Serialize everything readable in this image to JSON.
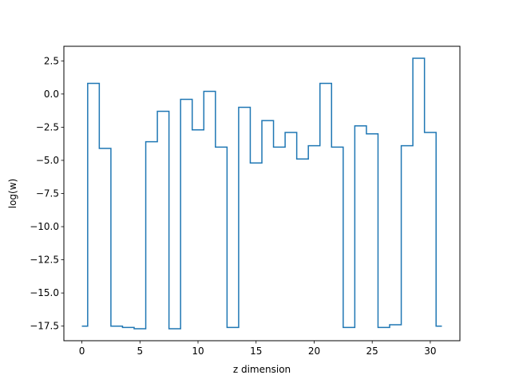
{
  "chart_data": {
    "type": "line",
    "drawstyle": "steps-mid",
    "title": "",
    "xlabel": "z dimension",
    "ylabel": "log(w)",
    "xlim": [
      -1.55,
      32.55
    ],
    "ylim": [
      -18.6,
      3.6
    ],
    "xticks": [
      0,
      5,
      10,
      15,
      20,
      25,
      30
    ],
    "xtick_labels": [
      "0",
      "5",
      "10",
      "15",
      "20",
      "25",
      "30"
    ],
    "yticks": [
      2.5,
      0.0,
      -2.5,
      -5.0,
      -7.5,
      -10.0,
      -12.5,
      -15.0,
      -17.5
    ],
    "ytick_labels": [
      "2.5",
      "0.0",
      "−2.5",
      "−5.0",
      "−7.5",
      "−10.0",
      "−12.5",
      "−15.0",
      "−17.5"
    ],
    "grid": false,
    "legend": "none",
    "color": "#1f77b4",
    "x": [
      0,
      1,
      2,
      3,
      4,
      5,
      6,
      7,
      8,
      9,
      10,
      11,
      12,
      13,
      14,
      15,
      16,
      17,
      18,
      19,
      20,
      21,
      22,
      23,
      24,
      25,
      26,
      27,
      28,
      29,
      30,
      31
    ],
    "y": [
      -17.5,
      0.8,
      -4.1,
      -17.5,
      -17.6,
      -17.7,
      -3.6,
      -1.3,
      -17.7,
      -0.4,
      -2.7,
      0.2,
      -4.0,
      -17.6,
      -1.0,
      -5.2,
      -2.0,
      -4.0,
      -2.9,
      -4.9,
      -3.9,
      0.8,
      -4.0,
      -17.6,
      -2.4,
      -3.0,
      -17.6,
      -17.4,
      -3.9,
      2.7,
      -2.9,
      -17.5
    ]
  }
}
